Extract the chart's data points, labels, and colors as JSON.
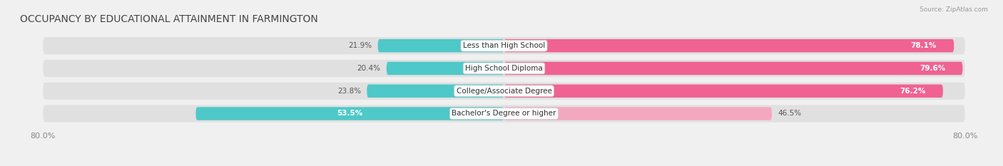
{
  "title": "OCCUPANCY BY EDUCATIONAL ATTAINMENT IN FARMINGTON",
  "source": "Source: ZipAtlas.com",
  "categories": [
    "Less than High School",
    "High School Diploma",
    "College/Associate Degree",
    "Bachelor's Degree or higher"
  ],
  "owner_pct": [
    21.9,
    20.4,
    23.8,
    53.5
  ],
  "renter_pct": [
    78.1,
    79.6,
    76.2,
    46.5
  ],
  "owner_color": "#4ec8c8",
  "renter_colors": [
    "#f06292",
    "#f06292",
    "#f06292",
    "#f4a8c0"
  ],
  "axis_min": -80.0,
  "axis_max": 80.0,
  "background_color": "#f0f0f0",
  "bar_bg_color": "#dcdcdc",
  "title_fontsize": 10,
  "label_fontsize": 7.5,
  "pct_fontsize": 7.5
}
